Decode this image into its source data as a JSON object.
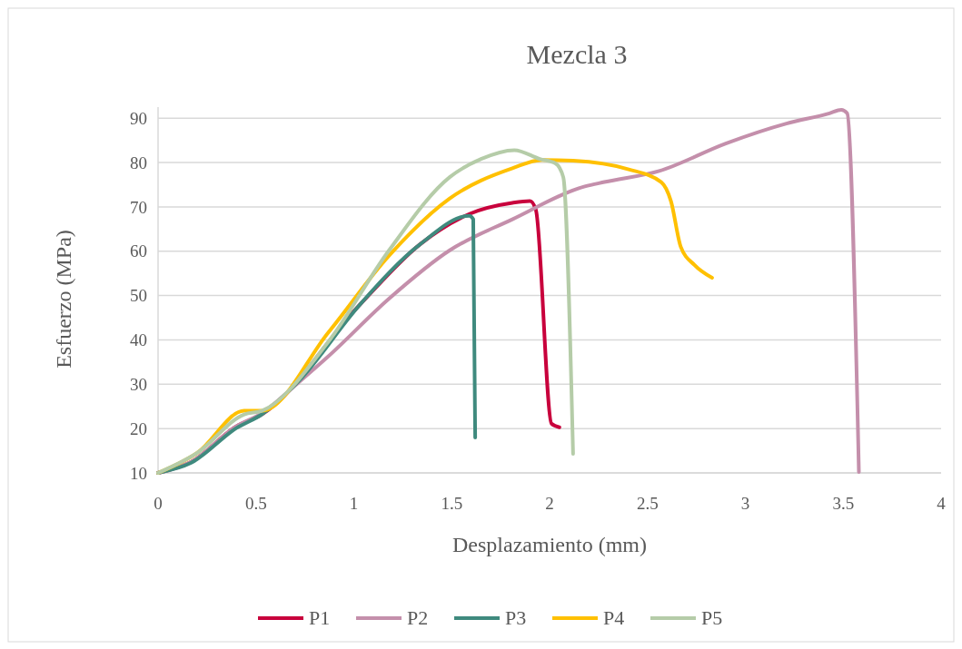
{
  "chart_data": {
    "type": "line",
    "title": "Mezcla 3",
    "xlabel": "Desplazamiento (mm)",
    "ylabel": "Esfuerzo (MPa)",
    "xlim": [
      0,
      4
    ],
    "xticks": [
      0,
      0.5,
      1,
      1.5,
      2,
      2.5,
      3,
      3.5,
      4
    ],
    "ylim": [
      10,
      92.5
    ],
    "yticks": [
      10,
      20,
      30,
      40,
      50,
      60,
      70,
      80,
      90
    ],
    "grid": "y",
    "legend": "bottom",
    "line_style": "solid",
    "marker": "none",
    "series": [
      {
        "name": "P1",
        "color": "#c8003c",
        "x": [
          0,
          0.17,
          0.4,
          0.53,
          0.72,
          1.03,
          1.34,
          1.59,
          1.81,
          1.9,
          1.93,
          2.01,
          2.05
        ],
        "values": [
          10,
          12.5,
          20.5,
          23.2,
          null,
          47.9,
          61.6,
          68.4,
          70.9,
          71.3,
          69.3,
          21.1,
          20.3
        ]
      },
      {
        "name": "P2",
        "color": "#c48fab",
        "x": [
          0,
          0.17,
          0.4,
          0.53,
          0.72,
          0.87,
          1.18,
          1.49,
          1.81,
          2.18,
          2.28,
          2.56,
          2.9,
          3.21,
          3.43,
          3.49,
          3.52,
          3.58
        ],
        "values": [
          10,
          12.5,
          20.5,
          23.5,
          30.5,
          36.3,
          49.3,
          60.2,
          67.2,
          74.6,
          75.6,
          78.1,
          84.3,
          88.8,
          91.1,
          91.9,
          91.1,
          10.2
        ]
      },
      {
        "name": "P3",
        "color": "#3f8a7e",
        "x": [
          0,
          0.17,
          0.4,
          0.53,
          0.72,
          1.03,
          1.34,
          1.59,
          1.61,
          1.62
        ],
        "values": [
          10,
          12.3,
          20.1,
          23.2,
          30.8,
          47.9,
          61.6,
          68,
          67.2,
          18
        ]
      },
      {
        "name": "P4",
        "color": "#ffc000",
        "x": [
          0,
          0.2,
          0.44,
          0.53,
          0.87,
          1.18,
          1.49,
          1.81,
          1.96,
          2.12,
          2.4,
          2.57,
          2.62,
          2.67,
          2.74,
          2.83
        ],
        "values": [
          10,
          14.5,
          24,
          24,
          41.7,
          59,
          71.9,
          78.7,
          80.6,
          80.4,
          78.5,
          75.6,
          71.3,
          61,
          56.9,
          54
        ]
      },
      {
        "name": "P5",
        "color": "#b5cca8",
        "x": [
          0,
          0.2,
          0.44,
          0.53,
          0.87,
          1.18,
          1.49,
          1.65,
          1.82,
          1.95,
          2.03,
          2.07,
          2.12
        ],
        "values": [
          10,
          14.5,
          23.2,
          24,
          39.6,
          60.2,
          76.7,
          80.8,
          82.8,
          80.8,
          79.8,
          76.7,
          14.3
        ]
      }
    ]
  }
}
